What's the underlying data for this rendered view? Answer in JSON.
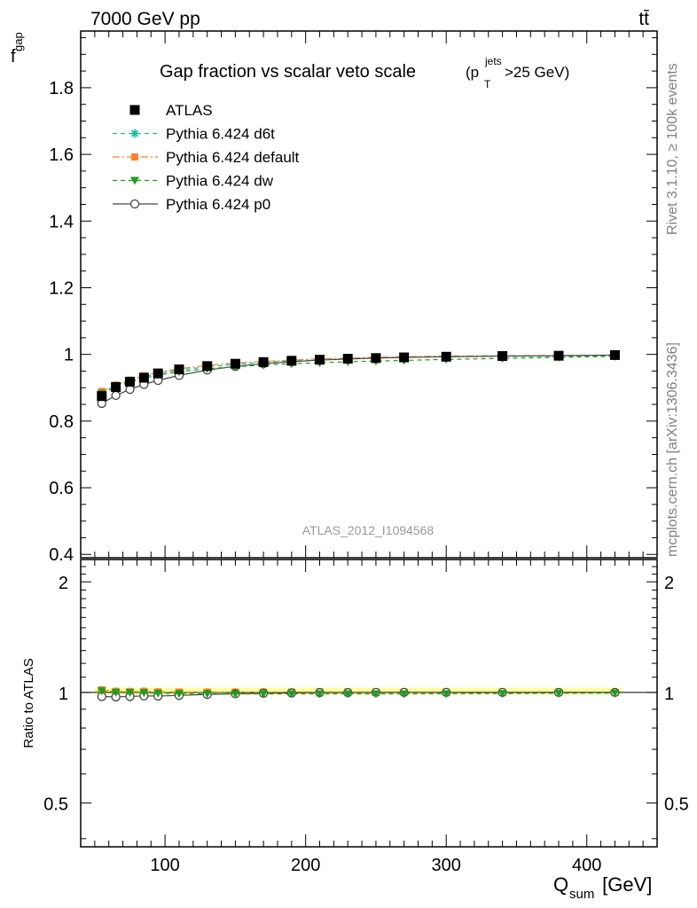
{
  "header": {
    "left": "7000 GeV pp",
    "right": "tt̄"
  },
  "title": {
    "main": "Gap fraction vs scalar veto scale",
    "expr_open": "(p",
    "expr_sup": "jets",
    "expr_sub": "T",
    "expr_close": ">25 GeV)"
  },
  "side_labels": {
    "rivet": "Rivet 3.1.10, ≥ 100k events",
    "mcplots": "mcplots.cern.ch [arXiv:1306.3436]"
  },
  "watermark": "ATLAS_2012_I1094568",
  "axes": {
    "ylabel_main": "f",
    "ylabel_main_sub": "gap",
    "ylabel_ratio": "Ratio to ATLAS",
    "xlabel": "Q",
    "xlabel_sub": "sum",
    "xlabel_unit": " [GeV]"
  },
  "chart_data": {
    "type": "line",
    "x": [
      55,
      65,
      75,
      85,
      95,
      110,
      130,
      150,
      170,
      190,
      210,
      230,
      250,
      270,
      300,
      340,
      380,
      420
    ],
    "xlim": [
      40,
      450
    ],
    "ylim": [
      0.39,
      1.97
    ],
    "ratio_ylim": [
      0.38,
      2.3
    ],
    "x_ticks": [
      100,
      200,
      300,
      400
    ],
    "y_ticks": [
      "0.4",
      "0.6",
      "0.8",
      "1",
      "1.2",
      "1.4",
      "1.6",
      "1.8"
    ],
    "ratio_ticks": [
      "0.5",
      "1",
      "2"
    ],
    "grid": false,
    "legend_position": "top-left",
    "series": [
      {
        "name": "ATLAS",
        "color": "#000000",
        "marker": "square",
        "line": "none",
        "values": [
          0.875,
          0.902,
          0.918,
          0.93,
          0.943,
          0.955,
          0.965,
          0.972,
          0.977,
          0.981,
          0.984,
          0.987,
          0.989,
          0.991,
          0.993,
          0.995,
          0.996,
          0.998
        ]
      },
      {
        "name": "Pythia 6.424 d6t",
        "color": "#1abc9c",
        "marker": "star",
        "line": "dashed",
        "values": [
          0.886,
          0.905,
          0.92,
          0.933,
          0.943,
          0.953,
          0.963,
          0.97,
          0.976,
          0.98,
          0.984,
          0.987,
          0.989,
          0.991,
          0.993,
          0.994,
          0.995,
          0.996
        ]
      },
      {
        "name": "Pythia 6.424 default",
        "color": "#ff7f2a",
        "marker": "square",
        "line": "dashdot",
        "values": [
          0.889,
          0.908,
          0.923,
          0.936,
          0.946,
          0.957,
          0.967,
          0.974,
          0.979,
          0.983,
          0.987,
          0.989,
          0.991,
          0.993,
          0.995,
          0.996,
          0.997,
          0.998
        ]
      },
      {
        "name": "Pythia 6.424 dw",
        "color": "#1e9e1e",
        "marker": "triangle-down",
        "line": "dashed",
        "values": [
          0.883,
          0.902,
          0.917,
          0.929,
          0.938,
          0.948,
          0.957,
          0.963,
          0.968,
          0.972,
          0.975,
          0.978,
          0.98,
          0.982,
          0.985,
          0.988,
          0.991,
          0.994
        ]
      },
      {
        "name": "Pythia 6.424 p0",
        "color": "#444444",
        "marker": "open-circle",
        "line": "solid",
        "values": [
          0.853,
          0.877,
          0.895,
          0.91,
          0.922,
          0.937,
          0.953,
          0.964,
          0.972,
          0.978,
          0.983,
          0.986,
          0.989,
          0.991,
          0.993,
          0.995,
          0.996,
          0.998
        ]
      }
    ]
  }
}
